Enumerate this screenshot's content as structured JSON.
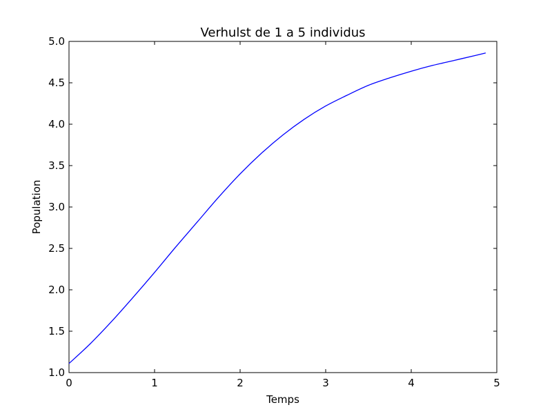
{
  "chart_data": {
    "type": "line",
    "title": "Verhulst de 1 a 5 individus",
    "xlabel": "Temps",
    "ylabel": "Population",
    "xlim": [
      0,
      5
    ],
    "ylim": [
      1.0,
      5.0
    ],
    "xticks": [
      0,
      1,
      2,
      3,
      4,
      5
    ],
    "xtick_labels": [
      "0",
      "1",
      "2",
      "3",
      "4",
      "5"
    ],
    "yticks": [
      1.0,
      1.5,
      2.0,
      2.5,
      3.0,
      3.5,
      4.0,
      4.5,
      5.0
    ],
    "ytick_labels": [
      "1.0",
      "1.5",
      "2.0",
      "2.5",
      "3.0",
      "3.5",
      "4.0",
      "4.5",
      "5.0"
    ],
    "grid": false,
    "series": [
      {
        "color": "#0000ff",
        "x": [
          0,
          0.25,
          0.5,
          0.75,
          1.0,
          1.25,
          1.5,
          1.75,
          2.0,
          2.25,
          2.5,
          2.75,
          3.0,
          3.25,
          3.5,
          3.75,
          4.0,
          4.25,
          4.5,
          4.75,
          4.87
        ],
        "y": [
          1.11,
          1.35,
          1.62,
          1.91,
          2.21,
          2.52,
          2.82,
          3.12,
          3.4,
          3.65,
          3.87,
          4.06,
          4.22,
          4.35,
          4.47,
          4.56,
          4.64,
          4.71,
          4.77,
          4.83,
          4.86
        ]
      }
    ]
  }
}
